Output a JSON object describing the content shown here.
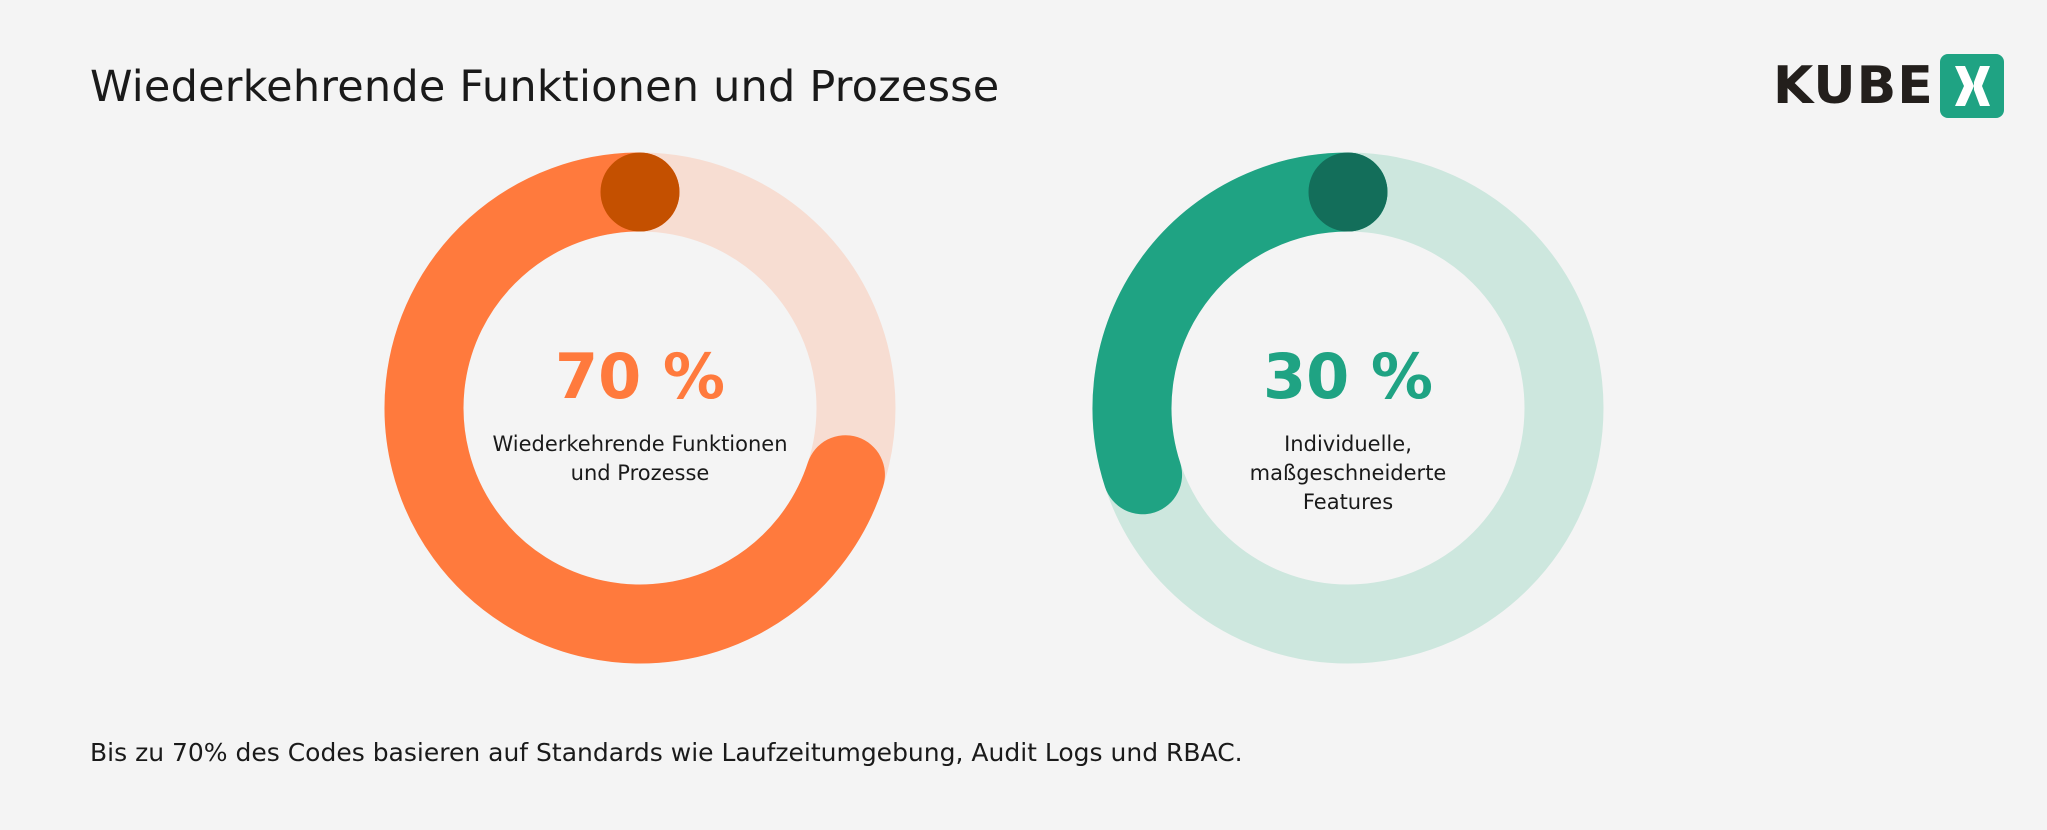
{
  "title": "Wiederkehrende Funktionen und Prozesse",
  "footer": "Bis zu 70% des Codes basieren auf Standards wie Laufzeitumgebung, Audit Logs und RBAC.",
  "logo": {
    "text": "KUBE",
    "mark": "X",
    "color": "#1fa383"
  },
  "chart_data": [
    {
      "type": "pie",
      "style": "donut",
      "value": 70,
      "unit": "%",
      "value_label": "70 %",
      "label": "Wiederkehrende Funktionen und Prozesse",
      "label_lines": [
        "Wiederkehrende Funktionen",
        "und Prozesse"
      ],
      "colors": {
        "fill": "#ff7a3d",
        "track": "#f7ddd2",
        "cap": "#c45000"
      }
    },
    {
      "type": "pie",
      "style": "donut",
      "value": 30,
      "unit": "%",
      "value_label": "30 %",
      "label": "Individuelle, maßgeschneiderte Features",
      "label_lines": [
        "Individuelle,",
        "maßgeschneiderte",
        "Features"
      ],
      "colors": {
        "fill": "#1fa383",
        "track": "#cde7de",
        "cap": "#136e5a"
      }
    }
  ]
}
